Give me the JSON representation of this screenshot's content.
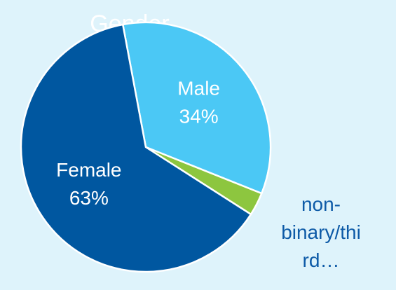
{
  "chart_data": {
    "type": "pie",
    "title": "Gender",
    "categories": [
      "Male",
      "non-binary/third…",
      "Female"
    ],
    "values": [
      34,
      3,
      63
    ],
    "value_labels": [
      "34%",
      null,
      "63%"
    ],
    "colors": [
      "#4bc8f5",
      "#8dc63f",
      "#0057a0"
    ]
  }
}
